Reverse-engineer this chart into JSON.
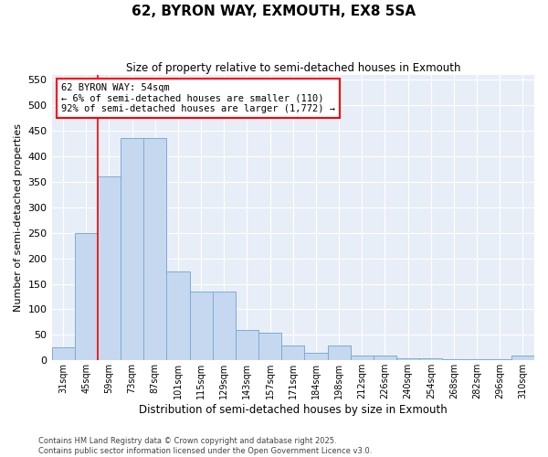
{
  "title": "62, BYRON WAY, EXMOUTH, EX8 5SA",
  "subtitle": "Size of property relative to semi-detached houses in Exmouth",
  "xlabel": "Distribution of semi-detached houses by size in Exmouth",
  "ylabel": "Number of semi-detached properties",
  "categories": [
    "31sqm",
    "45sqm",
    "59sqm",
    "73sqm",
    "87sqm",
    "101sqm",
    "115sqm",
    "129sqm",
    "143sqm",
    "157sqm",
    "171sqm",
    "184sqm",
    "198sqm",
    "212sqm",
    "226sqm",
    "240sqm",
    "254sqm",
    "268sqm",
    "282sqm",
    "296sqm",
    "310sqm"
  ],
  "values": [
    25,
    250,
    360,
    435,
    435,
    175,
    135,
    135,
    60,
    55,
    30,
    15,
    30,
    10,
    10,
    5,
    5,
    2,
    2,
    2,
    10
  ],
  "bar_color": "#C5D8F0",
  "bar_edge_color": "#7AADD4",
  "background_color": "#E8EEF8",
  "grid_color": "#FFFFFF",
  "vline_x": 1.5,
  "vline_color": "red",
  "annotation_title": "62 BYRON WAY: 54sqm",
  "annotation_line1": "← 6% of semi-detached houses are smaller (110)",
  "annotation_line2": "92% of semi-detached houses are larger (1,772) →",
  "annotation_box_color": "white",
  "annotation_box_edgecolor": "red",
  "ylim": [
    0,
    560
  ],
  "yticks": [
    0,
    50,
    100,
    150,
    200,
    250,
    300,
    350,
    400,
    450,
    500,
    550
  ],
  "footer_line1": "Contains HM Land Registry data © Crown copyright and database right 2025.",
  "footer_line2": "Contains public sector information licensed under the Open Government Licence v3.0."
}
